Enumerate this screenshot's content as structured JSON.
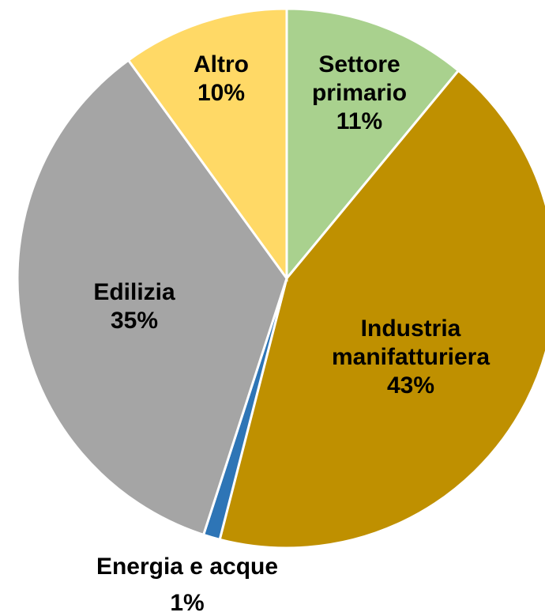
{
  "chart_data": {
    "type": "pie",
    "categories": [
      "Settore primario",
      "Industria manifatturiera",
      "Energia e acque",
      "Edilizia",
      "Altro"
    ],
    "values": [
      11,
      43,
      1,
      35,
      10
    ],
    "value_labels": [
      "11%",
      "43%",
      "1%",
      "35%",
      "10%"
    ],
    "colors": [
      "#a9d18e",
      "#bf9000",
      "#2e75b6",
      "#a5a5a5",
      "#ffd966"
    ]
  }
}
